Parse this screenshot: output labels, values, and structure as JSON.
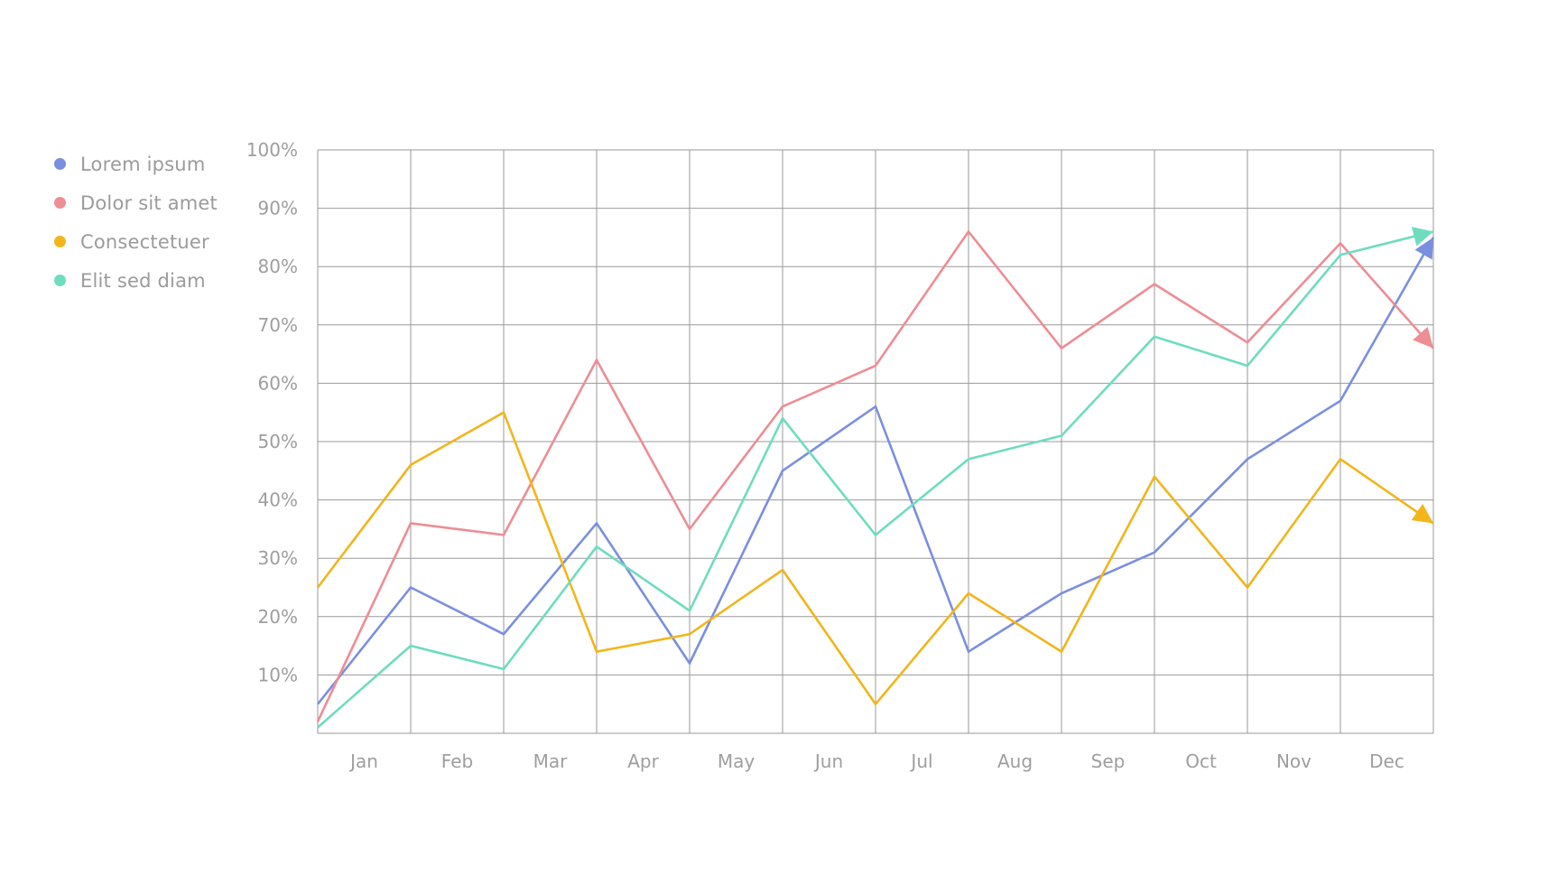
{
  "chart_data": {
    "type": "line",
    "categories": [
      "Jan",
      "Feb",
      "Mar",
      "Apr",
      "May",
      "Jun",
      "Jul",
      "Aug",
      "Sep",
      "Oct",
      "Nov",
      "Dec"
    ],
    "x": [
      0,
      1,
      2,
      3,
      4,
      5,
      6,
      7,
      8,
      9,
      10,
      11,
      12
    ],
    "y_ticks": [
      "10%",
      "20%",
      "30%",
      "40%",
      "50%",
      "60%",
      "70%",
      "80%",
      "90%",
      "100%"
    ],
    "ylim": [
      0,
      100
    ],
    "y_unit": "%",
    "grid": true,
    "legend_position": "left",
    "end_markers": "arrow",
    "series": [
      {
        "name": "Lorem ipsum",
        "color": "#7b8fe0",
        "values": [
          5,
          25,
          17,
          36,
          12,
          45,
          56,
          14,
          24,
          31,
          47,
          57,
          85
        ]
      },
      {
        "name": "Dolor sit amet",
        "color": "#ee8d94",
        "values": [
          2,
          36,
          34,
          64,
          35,
          56,
          63,
          86,
          66,
          77,
          67,
          84,
          66
        ]
      },
      {
        "name": "Consectetuer",
        "color": "#f2b51c",
        "values": [
          25,
          46,
          55,
          14,
          17,
          28,
          5,
          24,
          14,
          44,
          25,
          47,
          36
        ]
      },
      {
        "name": "Elit sed diam",
        "color": "#6fdcbe",
        "values": [
          1,
          15,
          11,
          32,
          21,
          54,
          34,
          47,
          51,
          68,
          63,
          82,
          86
        ]
      }
    ]
  }
}
